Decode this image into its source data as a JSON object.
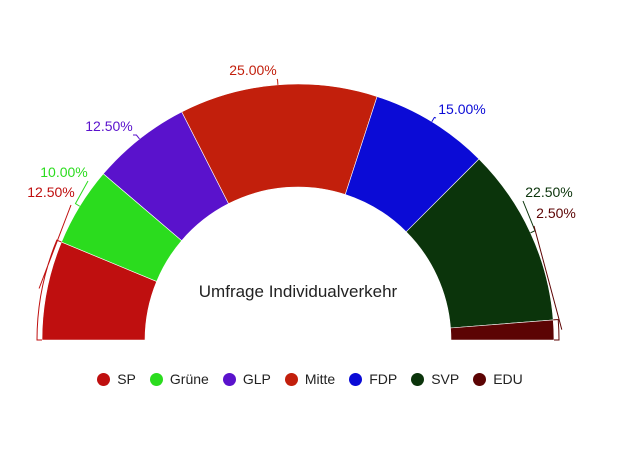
{
  "chart_data": {
    "type": "pie",
    "subtype": "semi-donut",
    "title": "Umfrage Individualverkehr",
    "categories": [
      "SP",
      "Grüne",
      "GLP",
      "Mitte",
      "FDP",
      "SVP",
      "EDU"
    ],
    "values": [
      12.5,
      10.0,
      12.5,
      25.0,
      15.0,
      22.5,
      2.5
    ],
    "value_labels": [
      "12.50%",
      "10.00%",
      "12.50%",
      "25.00%",
      "15.00%",
      "22.50%",
      "2.50%"
    ],
    "colors": [
      "#bf0f0f",
      "#2bdc1e",
      "#5a12cc",
      "#c21f0c",
      "#0b0bd6",
      "#0b340b",
      "#5c0404"
    ],
    "legend_position": "bottom"
  }
}
